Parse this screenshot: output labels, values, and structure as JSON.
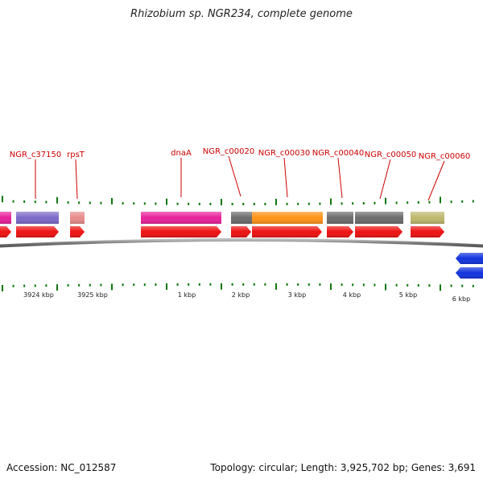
{
  "title": "Rhizobium sp. NGR234, complete genome",
  "accession": "Accession: NC_012587",
  "topology": "Topology: circular; Length: 3,925,702 bp; Genes: 3,691",
  "colors": {
    "label": "#cc0000",
    "tick": "#117711",
    "backbone": "#888888",
    "forward_cds": "#ee1111",
    "reverse_cds": "#1133dd"
  },
  "gene_labels": [
    {
      "text": "NGR_c37150",
      "gene": "NGR_c37150"
    },
    {
      "text": "rpsT",
      "gene": "rpsT"
    },
    {
      "text": "dnaA",
      "gene": "dnaA"
    },
    {
      "text": "NGR_c00020",
      "gene": "NGR_c00020"
    },
    {
      "text": "NGR_c00030",
      "gene": "NGR_c00030"
    },
    {
      "text": "NGR_c00040",
      "gene": "NGR_c00040"
    },
    {
      "text": "NGR_c00050",
      "gene": "NGR_c00050"
    },
    {
      "text": "NGR_c00060",
      "gene": "NGR_c00060"
    }
  ],
  "gene_boxes": [
    {
      "gene": "NGR_c37140",
      "color": "#e8209a"
    },
    {
      "gene": "NGR_c37150",
      "color": "#7b68c8"
    },
    {
      "gene": "rpsT",
      "color": "#e88a8a"
    },
    {
      "gene": "dnaA",
      "color": "#e8209a"
    },
    {
      "gene": "NGR_c00020",
      "color": "#6b6b6b"
    },
    {
      "gene": "NGR_c00030",
      "color": "#ff9214"
    },
    {
      "gene": "NGR_c00040",
      "color": "#6b6b6b"
    },
    {
      "gene": "NGR_c00050",
      "color": "#6b6b6b"
    },
    {
      "gene": "NGR_c00060",
      "color": "#bdb76b"
    }
  ],
  "cds_forward": [
    "NGR_c37140",
    "NGR_c37150",
    "rpsT",
    "dnaA",
    "NGR_c00020",
    "NGR_c00030",
    "NGR_c00040",
    "NGR_c00050",
    "NGR_c00060"
  ],
  "cds_reverse": [
    "NGR_c00070",
    "NGR_c00080"
  ],
  "scale_labels": [
    "3924 kbp",
    "3925 kbp",
    "1 kbp",
    "2 kbp",
    "3 kbp",
    "4 kbp",
    "5 kbp",
    "6 kbp"
  ]
}
